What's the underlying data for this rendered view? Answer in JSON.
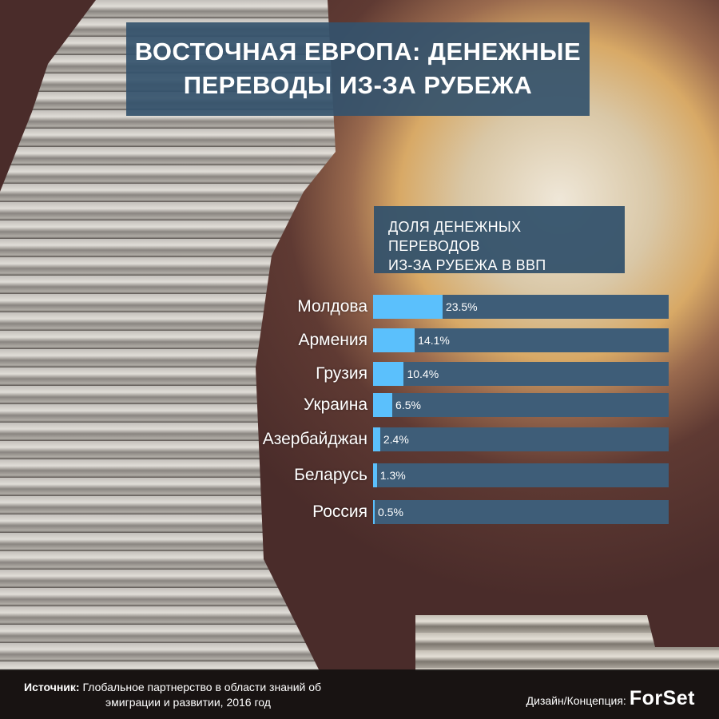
{
  "title": "ВОСТОЧНАЯ ЕВРОПА: ДЕНЕЖНЫЕ ПЕРЕВОДЫ ИЗ-ЗА РУБЕЖА",
  "title_lines": [
    "ВОСТОЧНАЯ ЕВРОПА: ДЕНЕЖНЫЕ",
    "ПЕРЕВОДЫ ИЗ-ЗА РУБЕЖА"
  ],
  "colors": {
    "fill": "#5bc0fc",
    "track": "#3e5d78",
    "box": "#34526c"
  },
  "chart_data": {
    "type": "bar",
    "orientation": "horizontal",
    "title": "ДОЛЯ ДЕНЕЖНЫХ ПЕРЕВОДОВ ИЗ-ЗА РУБЕЖА В ВВП",
    "title_lines": [
      "ДОЛЯ ДЕНЕЖНЫХ ПЕРЕВОДОВ",
      "ИЗ-ЗА РУБЕЖА В ВВП"
    ],
    "categories": [
      "Молдова",
      "Армения",
      "Грузия",
      "Украина",
      "Азербайджан",
      "Беларусь",
      "Россия"
    ],
    "values": [
      23.5,
      14.1,
      10.4,
      6.5,
      2.4,
      1.3,
      0.5
    ],
    "labels": [
      "23.5%",
      "14.1%",
      "10.4%",
      "6.5%",
      "2.4%",
      "1.3%",
      "0.5%"
    ],
    "xlim": [
      0,
      100
    ],
    "unit": "%"
  },
  "footer": {
    "source_label": "Источник:",
    "source_line1": "Глобальное партнерство в области знаний об",
    "source_line2": "эмиграции и развитии, 2016 год",
    "design_label": "Дизайн/Концепция:",
    "logo": "ForSet"
  }
}
